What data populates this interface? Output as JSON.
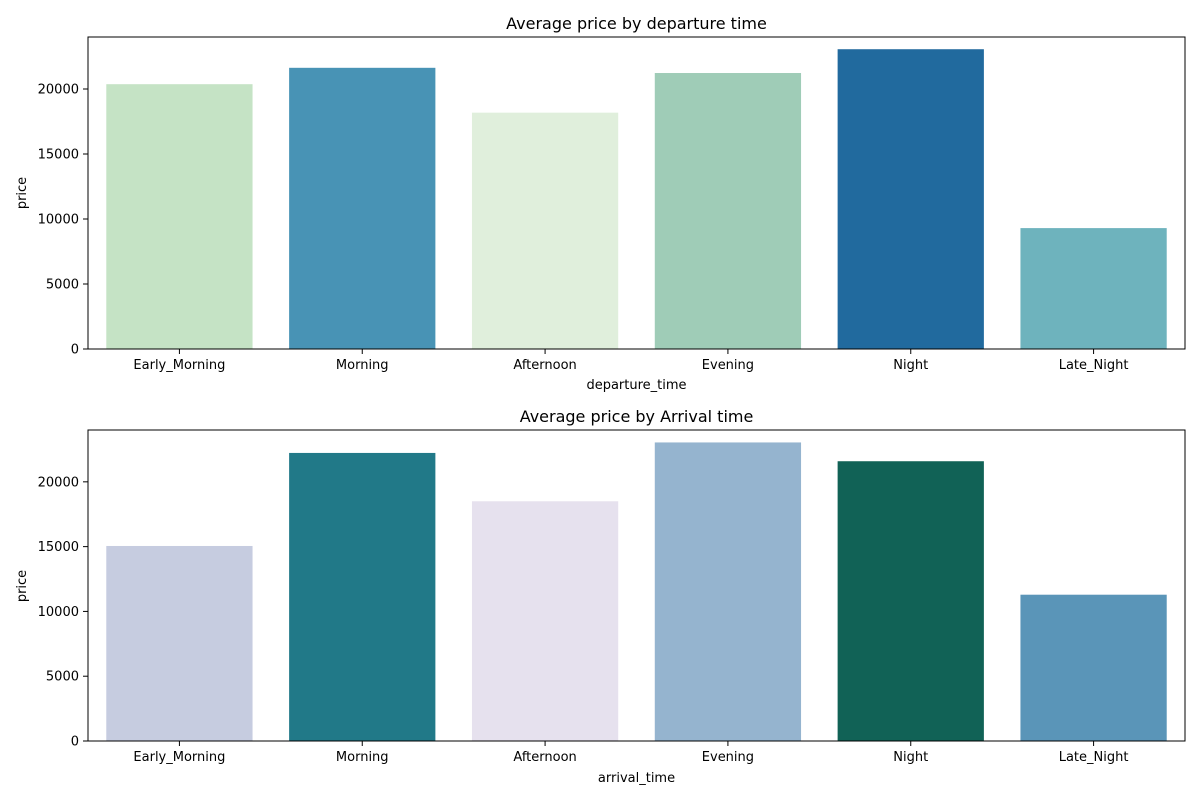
{
  "chart_data": [
    {
      "type": "bar",
      "title": "Average price by departure time",
      "xlabel": "departure_time",
      "ylabel": "price",
      "categories": [
        "Early_Morning",
        "Morning",
        "Afternoon",
        "Evening",
        "Night",
        "Late_Night"
      ],
      "values": [
        20370,
        21630,
        18180,
        21230,
        23060,
        9300
      ],
      "colors": [
        "#c5e3c5",
        "#4893b5",
        "#e0efdc",
        "#9fccb7",
        "#216a9e",
        "#6eb3bd"
      ],
      "ylim": [
        0,
        24000
      ],
      "yticks": [
        0,
        5000,
        10000,
        15000,
        20000
      ],
      "grid": false,
      "legend": "none"
    },
    {
      "type": "bar",
      "title": "Average price by Arrival time",
      "xlabel": "arrival_time",
      "ylabel": "price",
      "categories": [
        "Early_Morning",
        "Morning",
        "Afternoon",
        "Evening",
        "Night",
        "Late_Night"
      ],
      "values": [
        15050,
        22230,
        18500,
        23040,
        21590,
        11290
      ],
      "colors": [
        "#c6cce0",
        "#217988",
        "#e6e1ee",
        "#95b4cf",
        "#116256",
        "#5a95b8"
      ],
      "ylim": [
        0,
        24000
      ],
      "yticks": [
        0,
        5000,
        10000,
        15000,
        20000
      ],
      "grid": false,
      "legend": "none"
    }
  ]
}
